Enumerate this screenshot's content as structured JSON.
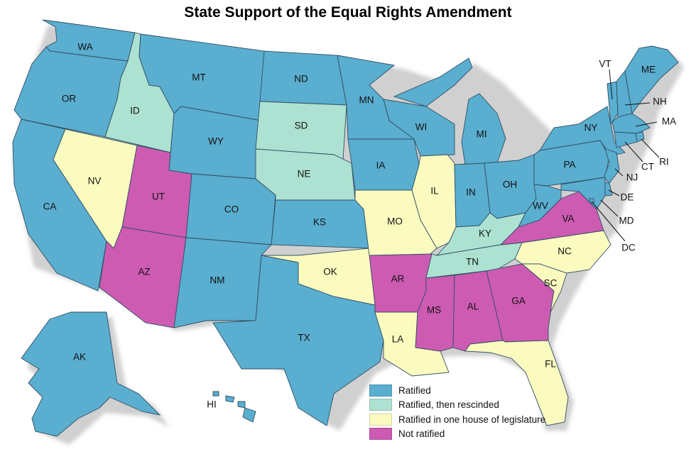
{
  "title": "State Support of the Equal Rights Amendment",
  "colors": {
    "ratified": "#5aaed0",
    "rescinded": "#ade2d2",
    "one_house": "#fbfbc0",
    "not_ratified": "#cd5bb2",
    "shadow": "#c8c8c8"
  },
  "legend": [
    {
      "key": "ratified",
      "label": "Ratified"
    },
    {
      "key": "rescinded",
      "label": "Ratified, then rescinded"
    },
    {
      "key": "one_house",
      "label": "Ratified in one house of legislature"
    },
    {
      "key": "not_ratified",
      "label": "Not ratified"
    }
  ],
  "states": [
    {
      "abbr": "WA",
      "status": "ratified"
    },
    {
      "abbr": "OR",
      "status": "ratified"
    },
    {
      "abbr": "CA",
      "status": "ratified"
    },
    {
      "abbr": "ID",
      "status": "rescinded"
    },
    {
      "abbr": "NV",
      "status": "one_house"
    },
    {
      "abbr": "UT",
      "status": "not_ratified"
    },
    {
      "abbr": "AZ",
      "status": "not_ratified"
    },
    {
      "abbr": "MT",
      "status": "ratified"
    },
    {
      "abbr": "WY",
      "status": "ratified"
    },
    {
      "abbr": "CO",
      "status": "ratified"
    },
    {
      "abbr": "NM",
      "status": "ratified"
    },
    {
      "abbr": "ND",
      "status": "ratified"
    },
    {
      "abbr": "SD",
      "status": "rescinded"
    },
    {
      "abbr": "NE",
      "status": "rescinded"
    },
    {
      "abbr": "KS",
      "status": "ratified"
    },
    {
      "abbr": "OK",
      "status": "one_house"
    },
    {
      "abbr": "TX",
      "status": "ratified"
    },
    {
      "abbr": "MN",
      "status": "ratified"
    },
    {
      "abbr": "IA",
      "status": "ratified"
    },
    {
      "abbr": "MO",
      "status": "one_house"
    },
    {
      "abbr": "AR",
      "status": "not_ratified"
    },
    {
      "abbr": "LA",
      "status": "one_house"
    },
    {
      "abbr": "WI",
      "status": "ratified"
    },
    {
      "abbr": "IL",
      "status": "one_house"
    },
    {
      "abbr": "MI",
      "status": "ratified"
    },
    {
      "abbr": "IN",
      "status": "ratified"
    },
    {
      "abbr": "OH",
      "status": "ratified"
    },
    {
      "abbr": "KY",
      "status": "rescinded"
    },
    {
      "abbr": "TN",
      "status": "rescinded"
    },
    {
      "abbr": "MS",
      "status": "not_ratified"
    },
    {
      "abbr": "AL",
      "status": "not_ratified"
    },
    {
      "abbr": "GA",
      "status": "not_ratified"
    },
    {
      "abbr": "FL",
      "status": "one_house"
    },
    {
      "abbr": "SC",
      "status": "one_house"
    },
    {
      "abbr": "NC",
      "status": "one_house"
    },
    {
      "abbr": "VA",
      "status": "not_ratified"
    },
    {
      "abbr": "WV",
      "status": "ratified"
    },
    {
      "abbr": "PA",
      "status": "ratified"
    },
    {
      "abbr": "NY",
      "status": "ratified"
    },
    {
      "abbr": "VT",
      "status": "ratified"
    },
    {
      "abbr": "NH",
      "status": "ratified"
    },
    {
      "abbr": "ME",
      "status": "ratified"
    },
    {
      "abbr": "MA",
      "status": "ratified"
    },
    {
      "abbr": "RI",
      "status": "ratified"
    },
    {
      "abbr": "CT",
      "status": "ratified"
    },
    {
      "abbr": "NJ",
      "status": "ratified"
    },
    {
      "abbr": "DE",
      "status": "ratified"
    },
    {
      "abbr": "MD",
      "status": "ratified"
    },
    {
      "abbr": "DC",
      "status": "ratified"
    },
    {
      "abbr": "AK",
      "status": "ratified"
    },
    {
      "abbr": "HI",
      "status": "ratified"
    }
  ]
}
